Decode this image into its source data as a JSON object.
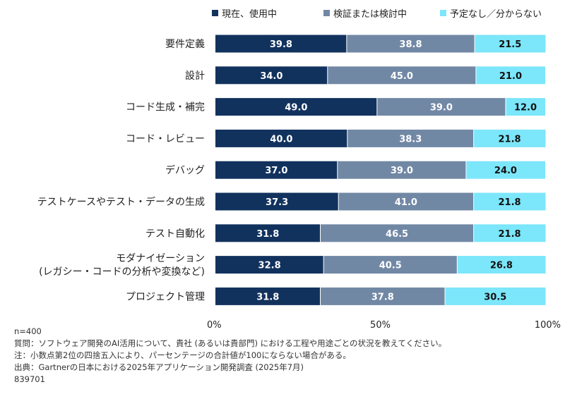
{
  "chart_data": {
    "type": "bar",
    "orientation": "horizontal",
    "stacked": true,
    "percent_stacked": true,
    "categories": [
      [
        "要件定義"
      ],
      [
        "設計"
      ],
      [
        "コード生成・補完"
      ],
      [
        "コード・レビュー"
      ],
      [
        "デバッグ"
      ],
      [
        "テストケースやテスト・データの生成"
      ],
      [
        "テスト自動化"
      ],
      [
        "モダナイゼーション",
        "(レガシー・コードの分析や変換など)"
      ],
      [
        "プロジェクト管理"
      ]
    ],
    "series": [
      {
        "name": "現在、使用中",
        "color": "#12325E",
        "label_color": "#FFFFFF",
        "values": [
          39.8,
          34.0,
          49.0,
          40.0,
          37.0,
          37.3,
          31.8,
          32.8,
          31.8
        ]
      },
      {
        "name": "検証または検討中",
        "color": "#7188A5",
        "label_color": "#FFFFFF",
        "values": [
          38.8,
          45.0,
          39.0,
          38.3,
          39.0,
          41.0,
          46.5,
          40.5,
          37.8
        ]
      },
      {
        "name": "予定なし／分からない",
        "color": "#7CE6FA",
        "label_color": "#111111",
        "values": [
          21.5,
          21.0,
          12.0,
          21.8,
          24.0,
          21.8,
          21.8,
          26.8,
          30.5
        ]
      }
    ],
    "xlim": [
      0,
      100
    ],
    "xticks": [
      "0%",
      "50%",
      "100%"
    ],
    "legend_position": "top"
  },
  "footer": {
    "n": "n=400",
    "question": "質問：ソフトウェア開発のAI活用について、貴社 (あるいは貴部門) における工程や用途ごとの状況を教えてください。",
    "note": "注：小数点第2位の四捨五入により、パーセンテージの合計値が100にならない場合がある。",
    "source": "出典：Gartnerの日本における2025年アプリケーション開発調査 (2025年7月)",
    "id": "839701"
  }
}
